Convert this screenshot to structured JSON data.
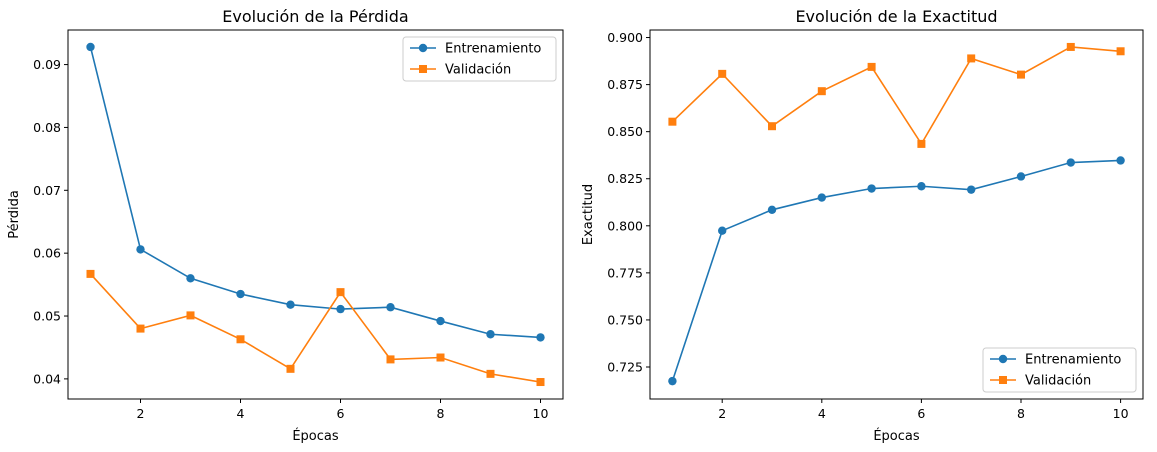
{
  "chart_data": [
    {
      "type": "line",
      "title": "Evolución de la Pérdida",
      "xlabel": "Épocas",
      "ylabel": "Pérdida",
      "x": [
        1,
        2,
        3,
        4,
        5,
        6,
        7,
        8,
        9,
        10
      ],
      "xlim": [
        0.55,
        10.45
      ],
      "ylim": [
        0.0368,
        0.0955
      ],
      "xticks": [
        2,
        4,
        6,
        8,
        10
      ],
      "yticks": [
        0.04,
        0.05,
        0.06,
        0.07,
        0.08,
        0.09
      ],
      "ytick_decimals": 2,
      "legend_position": "upper right",
      "series": [
        {
          "name": "Entrenamiento",
          "color": "#1f77b4",
          "marker": "circle",
          "values": [
            0.0928,
            0.0606,
            0.056,
            0.0535,
            0.0518,
            0.0511,
            0.0514,
            0.0492,
            0.0471,
            0.0466
          ]
        },
        {
          "name": "Validación",
          "color": "#ff7f0e",
          "marker": "square",
          "values": [
            0.0567,
            0.048,
            0.0501,
            0.0463,
            0.0416,
            0.0538,
            0.0431,
            0.0434,
            0.0408,
            0.0395
          ]
        }
      ]
    },
    {
      "type": "line",
      "title": "Evolución de la Exactitud",
      "xlabel": "Épocas",
      "ylabel": "Exactitud",
      "x": [
        1,
        2,
        3,
        4,
        5,
        6,
        7,
        8,
        9,
        10
      ],
      "xlim": [
        0.55,
        10.45
      ],
      "ylim": [
        0.708,
        0.904
      ],
      "xticks": [
        2,
        4,
        6,
        8,
        10
      ],
      "yticks": [
        0.725,
        0.75,
        0.775,
        0.8,
        0.825,
        0.85,
        0.875,
        0.9
      ],
      "ytick_decimals": 3,
      "legend_position": "lower right",
      "series": [
        {
          "name": "Entrenamiento",
          "color": "#1f77b4",
          "marker": "circle",
          "values": [
            0.7175,
            0.7974,
            0.8085,
            0.815,
            0.8198,
            0.821,
            0.8192,
            0.8262,
            0.8336,
            0.8347
          ]
        },
        {
          "name": "Validación",
          "color": "#ff7f0e",
          "marker": "square",
          "values": [
            0.8553,
            0.8807,
            0.8529,
            0.8715,
            0.8844,
            0.8435,
            0.8889,
            0.8803,
            0.895,
            0.8927
          ]
        }
      ]
    }
  ]
}
